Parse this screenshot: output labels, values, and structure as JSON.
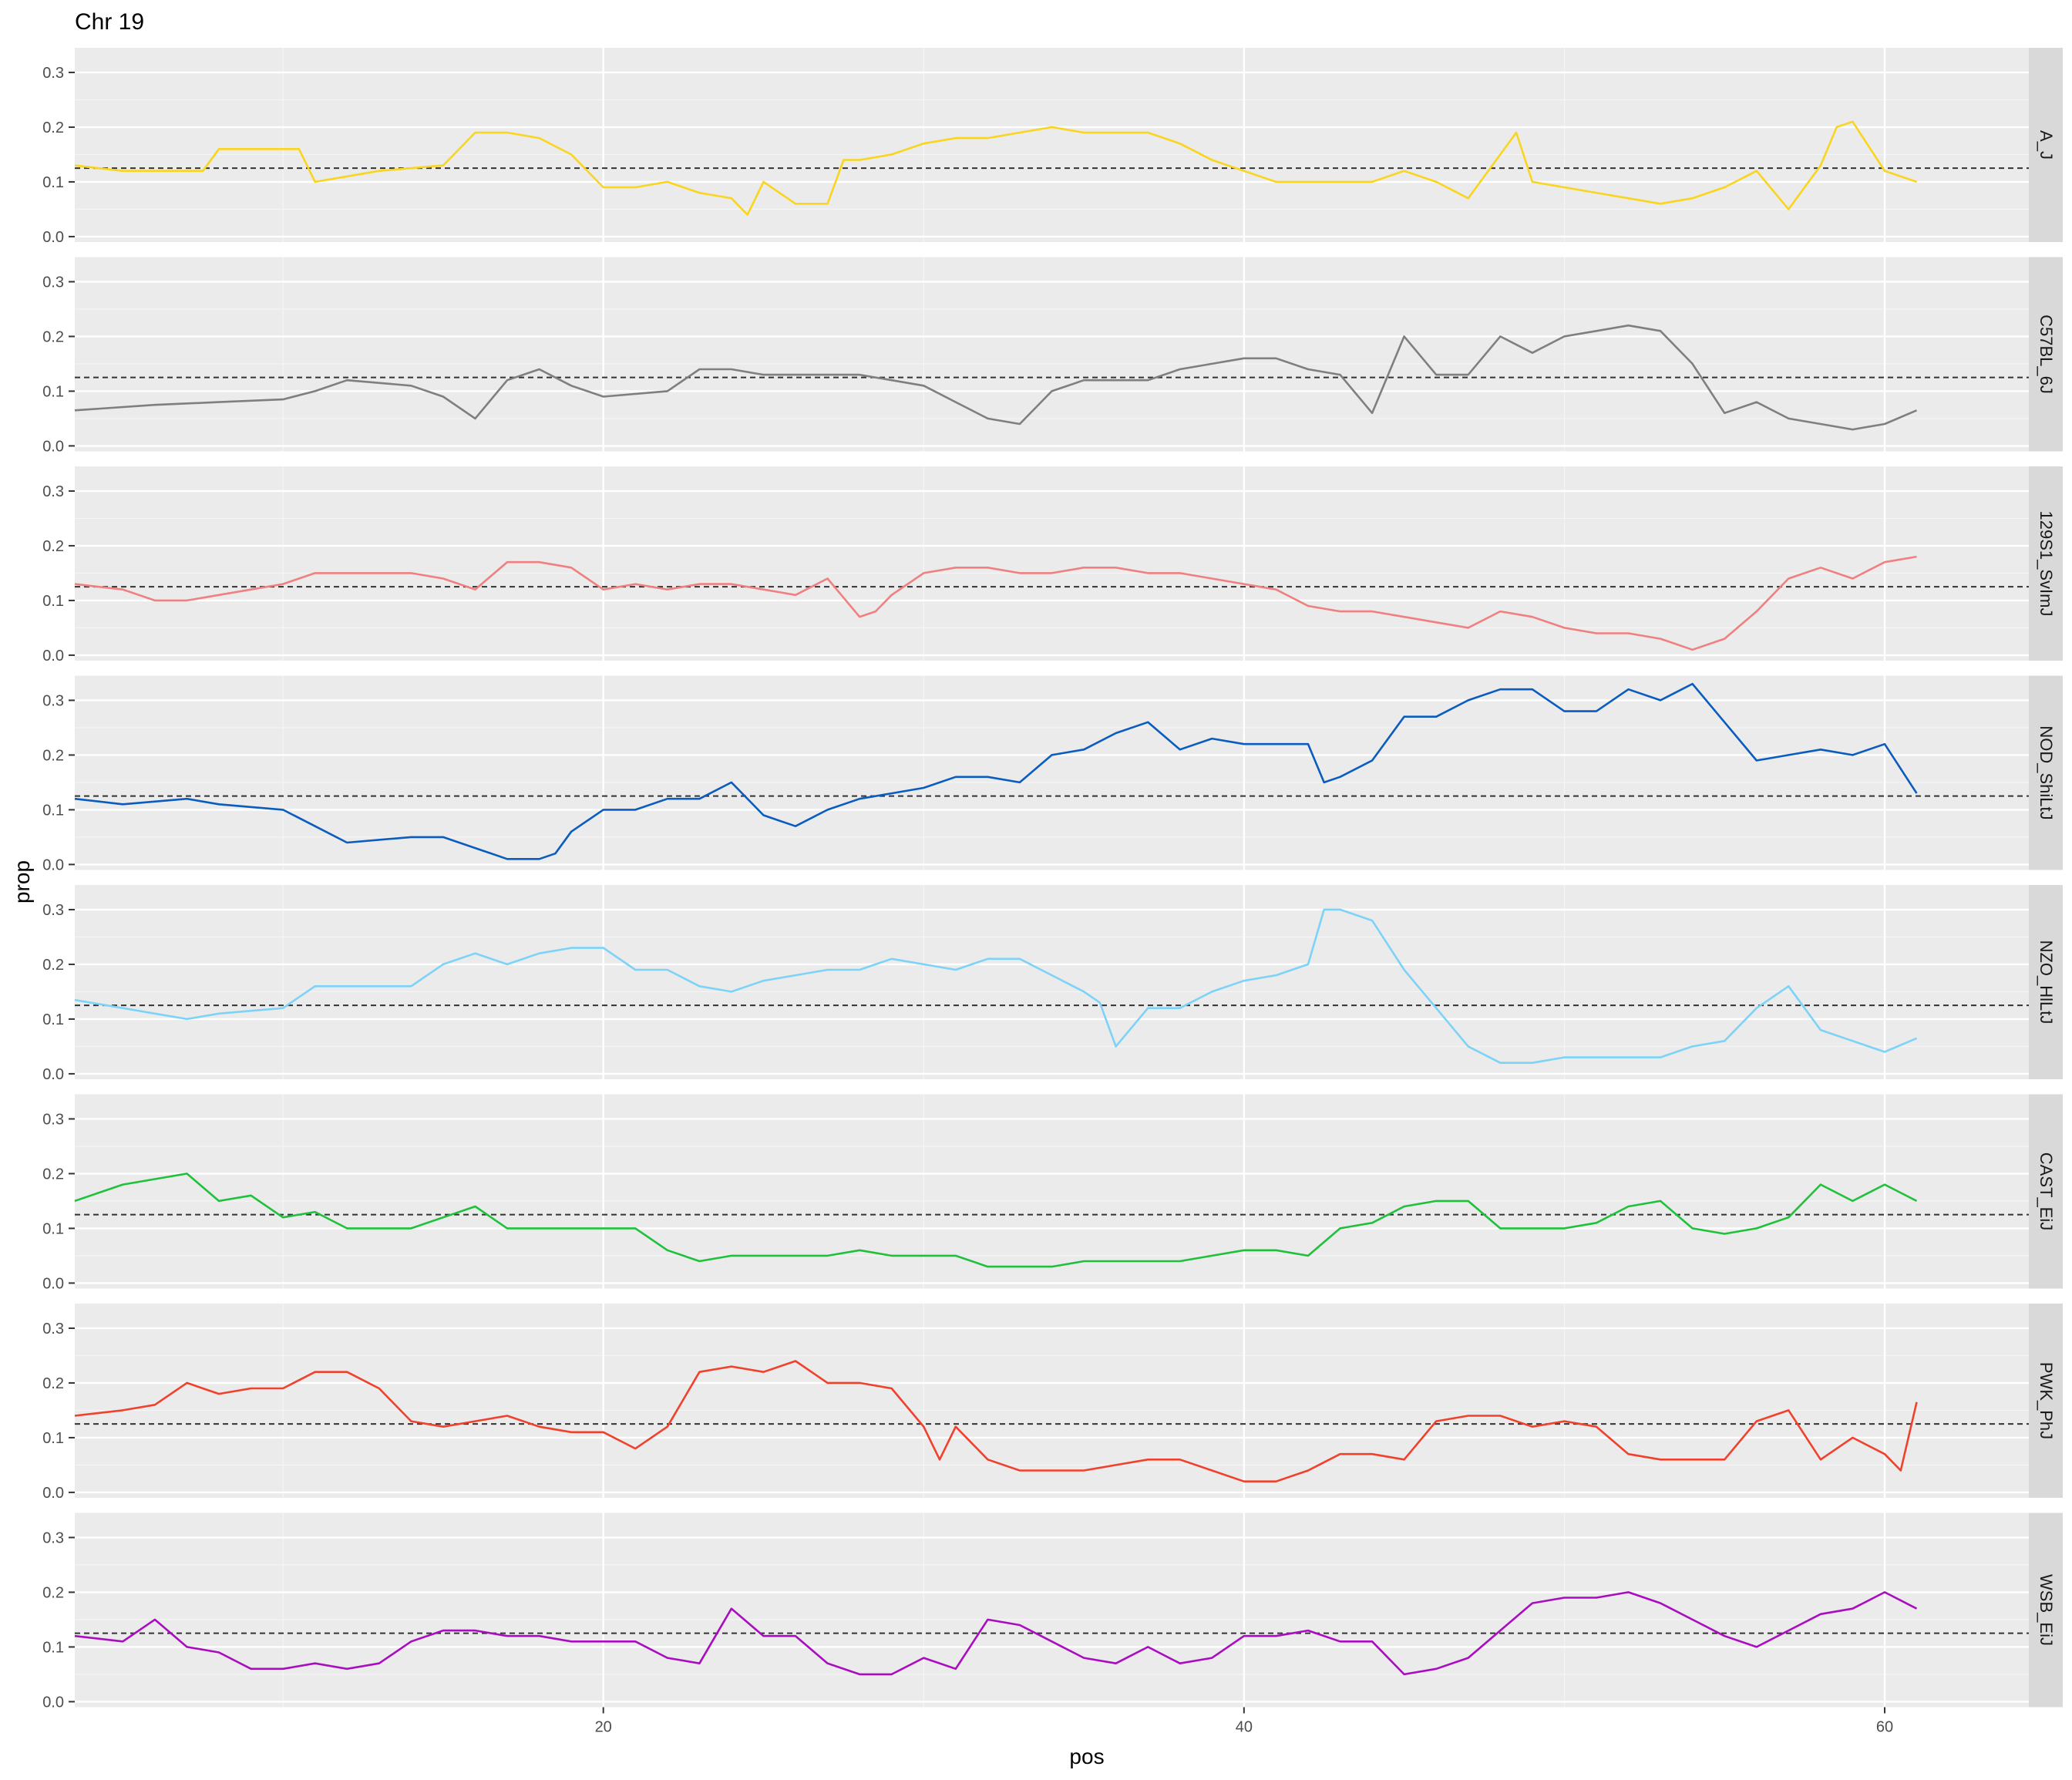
{
  "chart_data": {
    "type": "line",
    "title": "Chr 19",
    "xlabel": "pos",
    "ylabel": "prop",
    "xlim": [
      3.5,
      64.5
    ],
    "ylim": [
      -0.01,
      0.345
    ],
    "x_ticks": [
      20,
      40,
      60
    ],
    "y_ticks": [
      0.0,
      0.1,
      0.2,
      0.3
    ],
    "x_tick_labels": [
      "20",
      "40",
      "60"
    ],
    "y_tick_labels": [
      "0.0",
      "0.1",
      "0.2",
      "0.3"
    ],
    "reference_line": 0.125,
    "grid": true,
    "legend": "none",
    "facet_strip_position": "right",
    "series": [
      {
        "name": "A_J",
        "color": "#F9D51D",
        "x": [
          3.5,
          5,
          6,
          7.5,
          8,
          10.5,
          11,
          12,
          13,
          15,
          16,
          17,
          18,
          19,
          20,
          21,
          22,
          22.5,
          23,
          24,
          24.5,
          25,
          26,
          27,
          27.5,
          28,
          29,
          30,
          31,
          32,
          33,
          34,
          35,
          36,
          37,
          37.5,
          38,
          39,
          40,
          41,
          42,
          43,
          44,
          45,
          46,
          47,
          48,
          48.5,
          49,
          50,
          51,
          52,
          53,
          54,
          55,
          56,
          57,
          58,
          58.5,
          59,
          60,
          61
        ],
        "y": [
          0.13,
          0.12,
          0.12,
          0.12,
          0.16,
          0.16,
          0.1,
          0.11,
          0.12,
          0.13,
          0.19,
          0.19,
          0.18,
          0.15,
          0.09,
          0.09,
          0.1,
          0.09,
          0.08,
          0.07,
          0.04,
          0.1,
          0.06,
          0.06,
          0.14,
          0.14,
          0.15,
          0.17,
          0.18,
          0.18,
          0.19,
          0.2,
          0.19,
          0.19,
          0.19,
          0.18,
          0.17,
          0.14,
          0.12,
          0.1,
          0.1,
          0.1,
          0.1,
          0.12,
          0.1,
          0.07,
          0.15,
          0.19,
          0.1,
          0.09,
          0.08,
          0.07,
          0.06,
          0.07,
          0.09,
          0.12,
          0.05,
          0.13,
          0.2,
          0.21,
          0.12,
          0.1
        ]
      },
      {
        "name": "C57BL_6J",
        "color": "#7F7F7F",
        "x": [
          3.5,
          6,
          8,
          10,
          11,
          12,
          14,
          15,
          16,
          17,
          18,
          19,
          20,
          22,
          23,
          24,
          25,
          26,
          27,
          28,
          29,
          30,
          31,
          32,
          33,
          34,
          35,
          36,
          37,
          38,
          39,
          40,
          41,
          42,
          43,
          44,
          45,
          46,
          47,
          48,
          49,
          50,
          51,
          52,
          53,
          54,
          55,
          56,
          57,
          58,
          59,
          60,
          61
        ],
        "y": [
          0.065,
          0.075,
          0.08,
          0.085,
          0.1,
          0.12,
          0.11,
          0.09,
          0.05,
          0.12,
          0.14,
          0.11,
          0.09,
          0.1,
          0.14,
          0.14,
          0.13,
          0.13,
          0.13,
          0.13,
          0.12,
          0.11,
          0.08,
          0.05,
          0.04,
          0.1,
          0.12,
          0.12,
          0.12,
          0.14,
          0.15,
          0.16,
          0.16,
          0.14,
          0.13,
          0.06,
          0.2,
          0.13,
          0.13,
          0.2,
          0.17,
          0.2,
          0.21,
          0.22,
          0.21,
          0.15,
          0.06,
          0.08,
          0.05,
          0.04,
          0.03,
          0.04,
          0.065
        ]
      },
      {
        "name": "129S1_SvImJ",
        "color": "#F08080",
        "x": [
          3.5,
          5,
          6,
          7,
          8,
          9,
          10,
          11,
          12,
          14,
          15,
          16,
          17,
          18,
          19,
          20,
          21,
          22,
          23,
          24,
          25,
          26,
          27,
          28,
          28.5,
          29,
          30,
          31,
          32,
          33,
          34,
          35,
          36,
          37,
          38,
          39,
          40,
          41,
          42,
          43,
          44,
          45,
          46,
          47,
          48,
          49,
          50,
          51,
          52,
          53,
          54,
          55,
          56,
          57,
          58,
          59,
          60,
          61
        ],
        "y": [
          0.13,
          0.12,
          0.1,
          0.1,
          0.11,
          0.12,
          0.13,
          0.15,
          0.15,
          0.15,
          0.14,
          0.12,
          0.17,
          0.17,
          0.16,
          0.12,
          0.13,
          0.12,
          0.13,
          0.13,
          0.12,
          0.11,
          0.14,
          0.07,
          0.08,
          0.11,
          0.15,
          0.16,
          0.16,
          0.15,
          0.15,
          0.16,
          0.16,
          0.15,
          0.15,
          0.14,
          0.13,
          0.12,
          0.09,
          0.08,
          0.08,
          0.07,
          0.06,
          0.05,
          0.08,
          0.07,
          0.05,
          0.04,
          0.04,
          0.03,
          0.01,
          0.03,
          0.08,
          0.14,
          0.16,
          0.14,
          0.17,
          0.18
        ]
      },
      {
        "name": "NOD_ShiLtJ",
        "color": "#0A5CBF",
        "x": [
          3.5,
          5,
          7,
          8,
          10,
          11,
          12,
          14,
          15,
          16,
          17,
          18,
          18.5,
          19,
          20,
          21,
          22,
          23,
          24,
          25,
          26,
          27,
          28,
          29,
          30,
          31,
          32,
          33,
          34,
          35,
          36,
          37,
          38,
          39,
          40,
          41,
          42,
          42.5,
          43,
          44,
          45,
          46,
          47,
          48,
          49,
          50,
          51,
          52,
          53,
          54,
          55,
          56,
          57,
          58,
          59,
          60,
          61
        ],
        "y": [
          0.12,
          0.11,
          0.12,
          0.11,
          0.1,
          0.07,
          0.04,
          0.05,
          0.05,
          0.03,
          0.01,
          0.01,
          0.02,
          0.06,
          0.1,
          0.1,
          0.12,
          0.12,
          0.15,
          0.09,
          0.07,
          0.1,
          0.12,
          0.13,
          0.14,
          0.16,
          0.16,
          0.15,
          0.2,
          0.21,
          0.24,
          0.26,
          0.21,
          0.23,
          0.22,
          0.22,
          0.22,
          0.15,
          0.16,
          0.19,
          0.27,
          0.27,
          0.3,
          0.32,
          0.32,
          0.28,
          0.28,
          0.32,
          0.3,
          0.33,
          0.26,
          0.19,
          0.2,
          0.21,
          0.2,
          0.22,
          0.13
        ]
      },
      {
        "name": "NZO_HlLtJ",
        "color": "#7DD3F7",
        "x": [
          3.5,
          5,
          6,
          7,
          8,
          10,
          11,
          12,
          14,
          15,
          16,
          17,
          18,
          19,
          20,
          21,
          22,
          23,
          24,
          25,
          26,
          27,
          28,
          29,
          30,
          31,
          32,
          33,
          34,
          35,
          35.5,
          36,
          37,
          38,
          39,
          40,
          41,
          42,
          42.5,
          43,
          44,
          45,
          46,
          47,
          48,
          49,
          50,
          51,
          52,
          53,
          54,
          55,
          56,
          57,
          58,
          59,
          60,
          61
        ],
        "y": [
          0.135,
          0.12,
          0.11,
          0.1,
          0.11,
          0.12,
          0.16,
          0.16,
          0.16,
          0.2,
          0.22,
          0.2,
          0.22,
          0.23,
          0.23,
          0.19,
          0.19,
          0.16,
          0.15,
          0.17,
          0.18,
          0.19,
          0.19,
          0.21,
          0.2,
          0.19,
          0.21,
          0.21,
          0.18,
          0.15,
          0.13,
          0.05,
          0.12,
          0.12,
          0.15,
          0.17,
          0.18,
          0.2,
          0.3,
          0.3,
          0.28,
          0.19,
          0.12,
          0.05,
          0.02,
          0.02,
          0.03,
          0.03,
          0.03,
          0.03,
          0.05,
          0.06,
          0.12,
          0.16,
          0.08,
          0.06,
          0.04,
          0.065
        ]
      },
      {
        "name": "CAST_EiJ",
        "color": "#1FC13B",
        "x": [
          3.5,
          4,
          5,
          6,
          7,
          8,
          9,
          10,
          11,
          12,
          14,
          15,
          16,
          17,
          18,
          19,
          20,
          21,
          22,
          23,
          24,
          25,
          26,
          27,
          28,
          29,
          30,
          31,
          32,
          33,
          34,
          35,
          36,
          37,
          38,
          39,
          40,
          41,
          42,
          43,
          44,
          45,
          46,
          47,
          48,
          49,
          50,
          51,
          52,
          53,
          54,
          55,
          56,
          57,
          58,
          59,
          60,
          61
        ],
        "y": [
          0.15,
          0.16,
          0.18,
          0.19,
          0.2,
          0.15,
          0.16,
          0.12,
          0.13,
          0.1,
          0.1,
          0.12,
          0.14,
          0.1,
          0.1,
          0.1,
          0.1,
          0.1,
          0.06,
          0.04,
          0.05,
          0.05,
          0.05,
          0.05,
          0.06,
          0.05,
          0.05,
          0.05,
          0.03,
          0.03,
          0.03,
          0.04,
          0.04,
          0.04,
          0.04,
          0.05,
          0.06,
          0.06,
          0.05,
          0.1,
          0.11,
          0.14,
          0.15,
          0.15,
          0.1,
          0.1,
          0.1,
          0.11,
          0.14,
          0.15,
          0.1,
          0.09,
          0.1,
          0.12,
          0.18,
          0.15,
          0.18,
          0.15
        ]
      },
      {
        "name": "PWK_PhJ",
        "color": "#F0412C",
        "x": [
          3.5,
          5,
          6,
          7,
          8,
          9,
          10,
          11,
          12,
          13,
          14,
          15,
          16,
          17,
          18,
          19,
          20,
          21,
          22,
          23,
          24,
          25,
          26,
          27,
          28,
          29,
          30,
          30.5,
          31,
          32,
          33,
          34,
          35,
          36,
          37,
          38,
          39,
          40,
          41,
          42,
          43,
          44,
          45,
          46,
          47,
          48,
          49,
          50,
          51,
          52,
          53,
          54,
          55,
          56,
          57,
          58,
          59,
          60,
          60.5,
          61
        ],
        "y": [
          0.14,
          0.15,
          0.16,
          0.2,
          0.18,
          0.19,
          0.19,
          0.22,
          0.22,
          0.19,
          0.13,
          0.12,
          0.13,
          0.14,
          0.12,
          0.11,
          0.11,
          0.08,
          0.12,
          0.22,
          0.23,
          0.22,
          0.24,
          0.2,
          0.2,
          0.19,
          0.12,
          0.06,
          0.12,
          0.06,
          0.04,
          0.04,
          0.04,
          0.05,
          0.06,
          0.06,
          0.04,
          0.02,
          0.02,
          0.04,
          0.07,
          0.07,
          0.06,
          0.13,
          0.14,
          0.14,
          0.12,
          0.13,
          0.12,
          0.07,
          0.06,
          0.06,
          0.06,
          0.13,
          0.15,
          0.06,
          0.1,
          0.07,
          0.04,
          0.165
        ]
      },
      {
        "name": "WSB_EiJ",
        "color": "#A90DBF",
        "x": [
          3.5,
          5,
          6,
          7,
          8,
          9,
          10,
          11,
          12,
          13,
          14,
          15,
          16,
          17,
          18,
          19,
          20,
          21,
          22,
          23,
          24,
          25,
          26,
          27,
          28,
          29,
          30,
          31,
          32,
          33,
          34,
          35,
          36,
          37,
          38,
          39,
          40,
          41,
          42,
          43,
          44,
          45,
          46,
          47,
          48,
          49,
          50,
          51,
          52,
          53,
          54,
          55,
          56,
          57,
          58,
          59,
          60,
          61
        ],
        "y": [
          0.12,
          0.11,
          0.15,
          0.1,
          0.09,
          0.06,
          0.06,
          0.07,
          0.06,
          0.07,
          0.11,
          0.13,
          0.13,
          0.12,
          0.12,
          0.11,
          0.11,
          0.11,
          0.08,
          0.07,
          0.17,
          0.12,
          0.12,
          0.07,
          0.05,
          0.05,
          0.08,
          0.06,
          0.15,
          0.14,
          0.11,
          0.08,
          0.07,
          0.1,
          0.07,
          0.08,
          0.12,
          0.12,
          0.13,
          0.11,
          0.11,
          0.05,
          0.06,
          0.08,
          0.13,
          0.18,
          0.19,
          0.19,
          0.2,
          0.18,
          0.15,
          0.12,
          0.1,
          0.13,
          0.16,
          0.17,
          0.2,
          0.17
        ]
      }
    ]
  }
}
